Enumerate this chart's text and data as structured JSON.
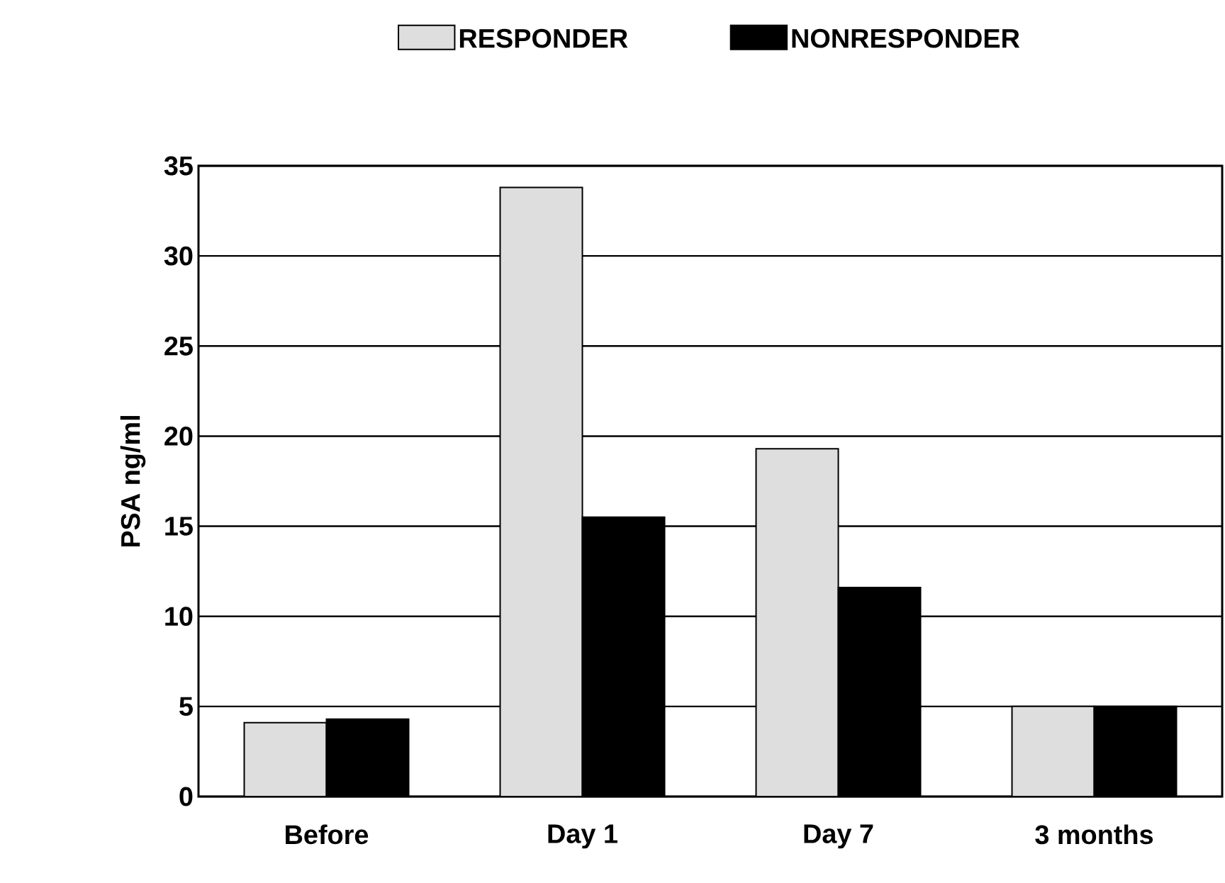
{
  "chart_data": {
    "type": "bar",
    "ylabel": "PSA ng/ml",
    "categories": [
      "Before",
      "Day 1",
      "Day 7",
      "3 months"
    ],
    "series": [
      {
        "name": "RESPONDER",
        "color": "#dedede",
        "values": [
          4.1,
          33.8,
          19.3,
          5.0
        ]
      },
      {
        "name": "NONRESPONDER",
        "color": "#000000",
        "values": [
          4.3,
          15.5,
          11.6,
          5.0
        ]
      }
    ],
    "ylim": [
      0,
      35
    ],
    "yticks": [
      0,
      5,
      10,
      15,
      20,
      25,
      30,
      35
    ],
    "grid": "y",
    "legend": "top"
  }
}
